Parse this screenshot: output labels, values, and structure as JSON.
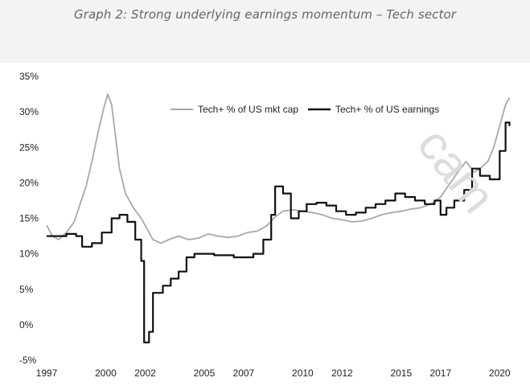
{
  "figure": {
    "caption": "Graph 2: Strong underlying earnings momentum – Tech sector",
    "watermark": "cam"
  },
  "colors": {
    "header_band": "#f3f3f3",
    "caption_text": "#666666",
    "series_mkt_cap": "#a8a8a8",
    "series_earnings": "#111111"
  },
  "chart_data": {
    "type": "line",
    "title": "",
    "xlabel": "",
    "ylabel": "",
    "ylim": [
      -5,
      35
    ],
    "xlim": [
      1997,
      2021.5
    ],
    "grid": false,
    "legend_position": "top-right",
    "x_ticks": [
      {
        "value": 1997,
        "label": "1997"
      },
      {
        "value": 2000,
        "label": "2000"
      },
      {
        "value": 2002,
        "label": "2002"
      },
      {
        "value": 2005,
        "label": "2005"
      },
      {
        "value": 2007,
        "label": "2007"
      },
      {
        "value": 2010,
        "label": "2010"
      },
      {
        "value": 2012,
        "label": "2012"
      },
      {
        "value": 2015,
        "label": "2015"
      },
      {
        "value": 2017,
        "label": "2017"
      },
      {
        "value": 2020,
        "label": "2020"
      }
    ],
    "y_ticks": [
      {
        "value": 35,
        "label": "35%"
      },
      {
        "value": 30,
        "label": "30%"
      },
      {
        "value": 25,
        "label": "25%"
      },
      {
        "value": 20,
        "label": "20%"
      },
      {
        "value": 15,
        "label": "15%"
      },
      {
        "value": 10,
        "label": "10%"
      },
      {
        "value": 5,
        "label": "5%"
      },
      {
        "value": 0,
        "label": "0%"
      },
      {
        "value": -5,
        "label": "-5%"
      }
    ],
    "series": [
      {
        "name": "Tech+ % of US mkt cap",
        "color": "#a8a8a8",
        "style": "line",
        "points": [
          [
            1997.0,
            14.0
          ],
          [
            1997.3,
            12.5
          ],
          [
            1997.6,
            12.0
          ],
          [
            1998.0,
            13.0
          ],
          [
            1998.4,
            14.5
          ],
          [
            1998.7,
            17.0
          ],
          [
            1999.0,
            19.5
          ],
          [
            1999.3,
            23.0
          ],
          [
            1999.6,
            27.0
          ],
          [
            1999.9,
            30.5
          ],
          [
            2000.1,
            32.5
          ],
          [
            2000.3,
            31.0
          ],
          [
            2000.5,
            26.5
          ],
          [
            2000.7,
            22.0
          ],
          [
            2001.0,
            18.5
          ],
          [
            2001.4,
            16.5
          ],
          [
            2001.8,
            15.0
          ],
          [
            2002.1,
            13.5
          ],
          [
            2002.4,
            12.0
          ],
          [
            2002.8,
            11.5
          ],
          [
            2003.2,
            12.0
          ],
          [
            2003.7,
            12.5
          ],
          [
            2004.2,
            12.0
          ],
          [
            2004.7,
            12.2
          ],
          [
            2005.2,
            12.8
          ],
          [
            2005.7,
            12.5
          ],
          [
            2006.2,
            12.3
          ],
          [
            2006.7,
            12.5
          ],
          [
            2007.2,
            13.0
          ],
          [
            2007.7,
            13.2
          ],
          [
            2008.2,
            14.0
          ],
          [
            2008.6,
            15.2
          ],
          [
            2009.0,
            16.0
          ],
          [
            2009.5,
            16.2
          ],
          [
            2010.0,
            16.0
          ],
          [
            2010.5,
            15.8
          ],
          [
            2011.0,
            15.5
          ],
          [
            2011.5,
            15.0
          ],
          [
            2012.0,
            14.8
          ],
          [
            2012.5,
            14.5
          ],
          [
            2013.0,
            14.6
          ],
          [
            2013.5,
            15.0
          ],
          [
            2014.0,
            15.5
          ],
          [
            2014.5,
            15.8
          ],
          [
            2015.0,
            16.0
          ],
          [
            2015.5,
            16.3
          ],
          [
            2016.0,
            16.5
          ],
          [
            2016.5,
            17.0
          ],
          [
            2017.0,
            18.0
          ],
          [
            2017.5,
            20.0
          ],
          [
            2018.0,
            22.0
          ],
          [
            2018.3,
            23.0
          ],
          [
            2018.7,
            21.5
          ],
          [
            2019.0,
            22.0
          ],
          [
            2019.4,
            23.0
          ],
          [
            2019.7,
            25.0
          ],
          [
            2020.0,
            28.0
          ],
          [
            2020.3,
            31.0
          ],
          [
            2020.5,
            32.0
          ]
        ]
      },
      {
        "name": "Tech+ % of US earnings",
        "color": "#111111",
        "style": "step",
        "points": [
          [
            1997.0,
            12.5
          ],
          [
            1997.5,
            12.5
          ],
          [
            1998.0,
            12.8
          ],
          [
            1998.5,
            12.5
          ],
          [
            1998.8,
            11.0
          ],
          [
            1999.3,
            11.5
          ],
          [
            1999.8,
            13.0
          ],
          [
            2000.3,
            15.0
          ],
          [
            2000.7,
            15.5
          ],
          [
            2001.1,
            14.5
          ],
          [
            2001.5,
            12.0
          ],
          [
            2001.8,
            9.0
          ],
          [
            2001.95,
            -2.5
          ],
          [
            2002.2,
            -1.0
          ],
          [
            2002.4,
            4.5
          ],
          [
            2002.9,
            5.5
          ],
          [
            2003.3,
            6.5
          ],
          [
            2003.7,
            7.5
          ],
          [
            2004.1,
            9.5
          ],
          [
            2004.5,
            10.0
          ],
          [
            2005.0,
            10.0
          ],
          [
            2005.5,
            9.8
          ],
          [
            2006.0,
            9.8
          ],
          [
            2006.5,
            9.5
          ],
          [
            2007.0,
            9.5
          ],
          [
            2007.5,
            10.0
          ],
          [
            2008.0,
            12.0
          ],
          [
            2008.4,
            15.5
          ],
          [
            2008.6,
            19.5
          ],
          [
            2009.0,
            18.5
          ],
          [
            2009.4,
            15.0
          ],
          [
            2009.8,
            16.0
          ],
          [
            2010.2,
            17.0
          ],
          [
            2010.7,
            17.2
          ],
          [
            2011.2,
            16.8
          ],
          [
            2011.7,
            16.0
          ],
          [
            2012.2,
            15.5
          ],
          [
            2012.7,
            15.8
          ],
          [
            2013.2,
            16.5
          ],
          [
            2013.7,
            17.0
          ],
          [
            2014.2,
            17.5
          ],
          [
            2014.7,
            18.5
          ],
          [
            2015.2,
            18.0
          ],
          [
            2015.7,
            17.5
          ],
          [
            2016.2,
            17.0
          ],
          [
            2016.7,
            17.5
          ],
          [
            2017.0,
            15.5
          ],
          [
            2017.3,
            16.5
          ],
          [
            2017.7,
            17.5
          ],
          [
            2018.2,
            19.0
          ],
          [
            2018.6,
            22.0
          ],
          [
            2019.0,
            21.0
          ],
          [
            2019.5,
            20.5
          ],
          [
            2020.0,
            24.5
          ],
          [
            2020.3,
            28.5
          ],
          [
            2020.5,
            28.0
          ]
        ]
      }
    ]
  }
}
